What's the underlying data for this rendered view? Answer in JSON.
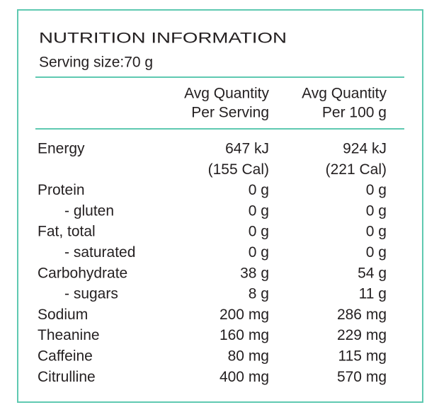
{
  "header": {
    "title": "NUTRITION INFORMATION",
    "serving_size": "Serving size:70 g"
  },
  "table": {
    "columns": [
      [
        "Avg Quantity",
        "Per Serving"
      ],
      [
        "Avg Quantity",
        "Per 100 g"
      ]
    ],
    "rows": [
      {
        "label": "Energy",
        "cells": [
          [
            "647 kJ",
            "(155 Cal)"
          ],
          [
            "924 kJ",
            "(221 Cal)"
          ]
        ]
      },
      {
        "label": "Protein",
        "cells": [
          [
            "0 g"
          ],
          [
            "0 g"
          ]
        ]
      },
      {
        "label": "- gluten",
        "cells": [
          [
            "0 g"
          ],
          [
            "0 g"
          ]
        ]
      },
      {
        "label": "Fat, total",
        "cells": [
          [
            "0 g"
          ],
          [
            "0 g"
          ]
        ]
      },
      {
        "label": "- saturated",
        "cells": [
          [
            "0 g"
          ],
          [
            "0 g"
          ]
        ]
      },
      {
        "label": "Carbohydrate",
        "cells": [
          [
            "38 g"
          ],
          [
            "54 g"
          ]
        ]
      },
      {
        "label": "- sugars",
        "cells": [
          [
            "8 g"
          ],
          [
            "11 g"
          ]
        ]
      },
      {
        "label": "Sodium",
        "cells": [
          [
            "200 mg"
          ],
          [
            "286 mg"
          ]
        ]
      },
      {
        "label": "Theanine",
        "cells": [
          [
            "160 mg"
          ],
          [
            "229 mg"
          ]
        ]
      },
      {
        "label": "Caffeine",
        "cells": [
          [
            "80 mg"
          ],
          [
            "115 mg"
          ]
        ]
      },
      {
        "label": "Citrulline",
        "cells": [
          [
            "400 mg"
          ],
          [
            "570 mg"
          ]
        ]
      }
    ]
  }
}
